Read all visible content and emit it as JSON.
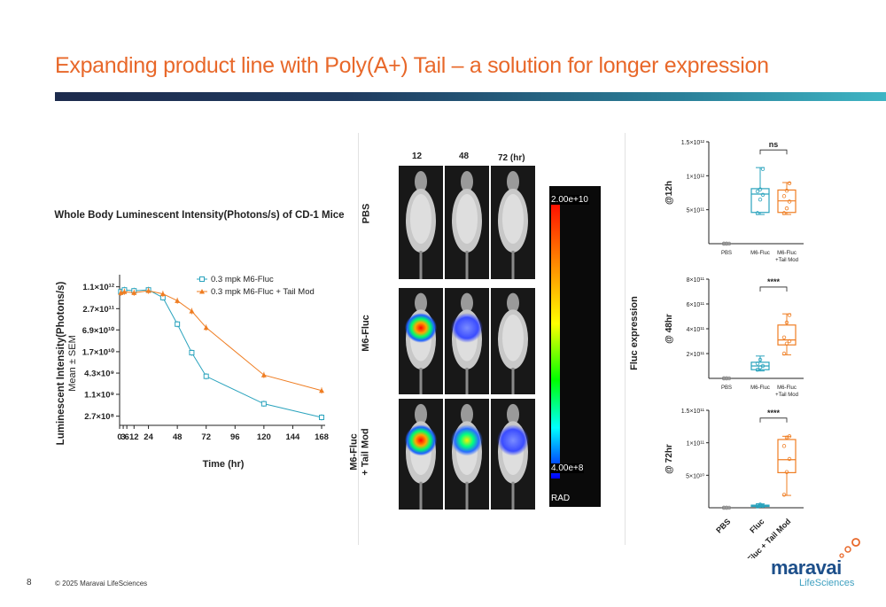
{
  "slide": {
    "title": "Expanding product line with Poly(A+) Tail – a solution for longer expression",
    "page_number": "8",
    "copyright": "© 2025 Maravai LifeSciences",
    "logo_main": "maravai",
    "logo_sub": "LifeSciences"
  },
  "imaging": {
    "timepoints": [
      "12",
      "48",
      "72 (hr)"
    ],
    "rows": [
      "PBS",
      "M6-Fluc",
      "M6-Fluc\n+ Tail Mod"
    ],
    "colorbar_max": "2.00e+10",
    "colorbar_min": "4.00e+8",
    "colorbar_unit": "RAD",
    "signal_levels": [
      [
        0,
        0,
        0
      ],
      [
        1.0,
        0.45,
        0
      ],
      [
        1.0,
        0.7,
        0.35
      ]
    ]
  },
  "colors": {
    "title": "#e8682a",
    "series_fluc": "#2aa3bd",
    "series_tail": "#ef7d22"
  },
  "chart_data": [
    {
      "type": "line",
      "title": "Whole Body Luminescent Intensity(Photons/s) of CD-1 Mice",
      "xlabel": "Time (hr)",
      "ylabel": "Luminescent Intensity(Photons/s)",
      "ylabel2": "Mean ± SEM",
      "yscale": "log",
      "x_ticks": [
        "0",
        "3",
        "6",
        "12",
        "24",
        "48",
        "72",
        "96",
        "120",
        "144",
        "168"
      ],
      "y_ticks": [
        "1.1×10¹²",
        "2.7×10¹¹",
        "6.9×10¹⁰",
        "1.7×10¹⁰",
        "4.3×10⁹",
        "1.1×10⁹",
        "2.7×10⁸"
      ],
      "y_tick_values": [
        1100000000000.0,
        270000000000.0,
        69000000000.0,
        17000000000.0,
        4300000000.0,
        1100000000.0,
        270000000.0
      ],
      "ylim": [
        150000000.0,
        1800000000000.0
      ],
      "xlim": [
        0,
        168
      ],
      "legend_position": "top-right",
      "series": [
        {
          "name": "0.3 mpk M6-Fluc",
          "color": "#2aa3bd",
          "marker": "square",
          "x": [
            1,
            4,
            12,
            24,
            36,
            48,
            60,
            72,
            120,
            168
          ],
          "y": [
            800000000000.0,
            900000000000.0,
            850000000000.0,
            900000000000.0,
            550000000000.0,
            100000000000.0,
            16000000000.0,
            3500000000.0,
            600000000.0,
            250000000.0
          ]
        },
        {
          "name": "0.3 mpk M6-Fluc + Tail Mod",
          "color": "#ef7d22",
          "marker": "triangle",
          "x": [
            1,
            4,
            12,
            24,
            36,
            48,
            60,
            72,
            120,
            168
          ],
          "y": [
            750000000000.0,
            800000000000.0,
            750000000000.0,
            850000000000.0,
            700000000000.0,
            450000000000.0,
            230000000000.0,
            80000000000.0,
            3800000000.0,
            1400000000.0
          ]
        }
      ]
    },
    {
      "type": "box",
      "ylabel": "@12h",
      "categories": [
        "PBS",
        "M6-Fluc",
        "M6-Fluc\n+Tail Mod"
      ],
      "y_ticks": [
        "5×10¹¹",
        "1×10¹²",
        "1.5×10¹²"
      ],
      "y_tick_values": [
        500000000000.0,
        1000000000000.0,
        1500000000000.0
      ],
      "ylim": [
        0,
        1500000000000.0
      ],
      "significance": "ns",
      "boxes": [
        {
          "min": 0,
          "q1": 0,
          "median": 0,
          "q3": 0,
          "max": 0,
          "points": [
            0,
            0,
            0,
            0,
            0
          ]
        },
        {
          "min": 430000000000.0,
          "q1": 460000000000.0,
          "median": 730000000000.0,
          "q3": 810000000000.0,
          "max": 1120000000000.0,
          "points": [
            450000000000.0,
            650000000000.0,
            720000000000.0,
            770000000000.0,
            800000000000.0,
            1100000000000.0
          ]
        },
        {
          "min": 430000000000.0,
          "q1": 460000000000.0,
          "median": 630000000000.0,
          "q3": 790000000000.0,
          "max": 900000000000.0,
          "points": [
            450000000000.0,
            520000000000.0,
            620000000000.0,
            700000000000.0,
            780000000000.0,
            890000000000.0
          ]
        }
      ]
    },
    {
      "type": "box",
      "ylabel": "@ 48hr",
      "categories": [
        "PBS",
        "M6-Fluc",
        "M6-Fluc\n+Tail Mod"
      ],
      "y_ticks": [
        "2×10¹¹",
        "4×10¹¹",
        "6×10¹¹",
        "8×10¹¹"
      ],
      "y_tick_values": [
        200000000000.0,
        400000000000.0,
        600000000000.0,
        800000000000.0
      ],
      "ylim": [
        0,
        800000000000.0
      ],
      "significance": "****",
      "boxes": [
        {
          "min": 0,
          "q1": 0,
          "median": 0,
          "q3": 0,
          "max": 0,
          "points": [
            0,
            0,
            0,
            0,
            0
          ]
        },
        {
          "min": 60000000000.0,
          "q1": 70000000000.0,
          "median": 100000000000.0,
          "q3": 130000000000.0,
          "max": 180000000000.0,
          "points": [
            70000000000.0,
            90000000000.0,
            100000000000.0,
            120000000000.0,
            150000000000.0
          ]
        },
        {
          "min": 190000000000.0,
          "q1": 270000000000.0,
          "median": 310000000000.0,
          "q3": 430000000000.0,
          "max": 520000000000.0,
          "points": [
            200000000000.0,
            280000000000.0,
            300000000000.0,
            330000000000.0,
            450000000000.0,
            510000000000.0
          ]
        }
      ]
    },
    {
      "type": "box",
      "ylabel": "@ 72hr",
      "categories": [
        "PBS",
        "Fluc",
        "Fluc + Tail Mod"
      ],
      "y_ticks": [
        "5×10¹⁰",
        "1×10¹¹",
        "1.5×10¹¹"
      ],
      "y_tick_values": [
        50000000000.0,
        100000000000.0,
        150000000000.0
      ],
      "ylim": [
        0,
        150000000000.0
      ],
      "significance": "****",
      "boxes": [
        {
          "min": 0,
          "q1": 0,
          "median": 0,
          "q3": 0,
          "max": 0,
          "points": [
            0,
            0,
            0,
            0,
            0
          ]
        },
        {
          "min": 1000000000.0,
          "q1": 2000000000.0,
          "median": 3000000000.0,
          "q3": 4000000000.0,
          "max": 6000000000.0,
          "points": [
            2000000000.0,
            3000000000.0,
            3000000000.0,
            4000000000.0,
            5000000000.0
          ]
        },
        {
          "min": 19000000000.0,
          "q1": 54000000000.0,
          "median": 74000000000.0,
          "q3": 105000000000.0,
          "max": 110000000000.0,
          "points": [
            20000000000.0,
            55000000000.0,
            75000000000.0,
            95000000000.0,
            108000000000.0,
            110000000000.0
          ]
        }
      ]
    }
  ],
  "shared_axis_label": "Fluc expression"
}
